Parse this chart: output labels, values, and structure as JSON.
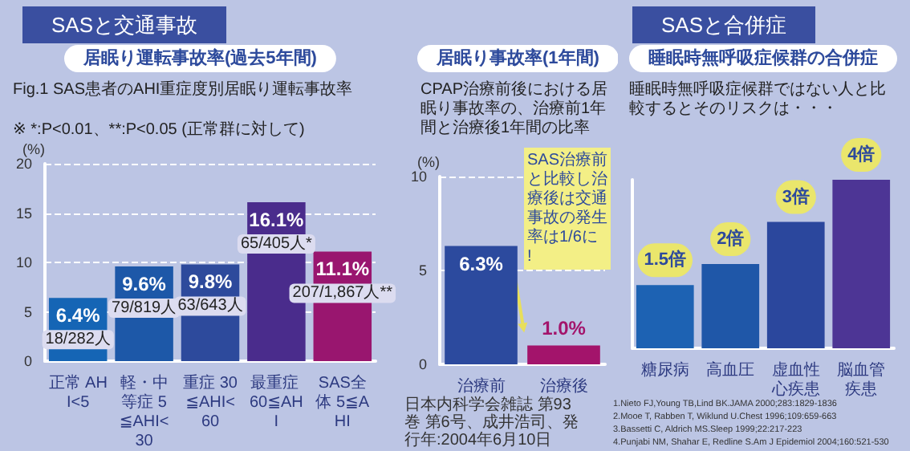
{
  "chart_data": [
    {
      "type": "bar",
      "subtitle": "SASと交通事故",
      "title": "居眠り運転事故率(過去5年間)",
      "ylabel": "(%)",
      "categories": [
        "正常 AHI<5",
        "軽・中等症 5≦AHI<30",
        "重症 30≦AHI<60",
        "最重症 60≦AHI",
        "SAS全体 5≦AHI"
      ],
      "values": [
        6.4,
        9.6,
        9.8,
        16.1,
        11.1
      ],
      "colors": [
        "#1565b5",
        "#1d58a8",
        "#2d4a9c",
        "#4a2c8c",
        "#99166f"
      ],
      "value_labels": [
        "6.4%",
        "9.6%",
        "9.8%",
        "16.1%",
        "11.1%"
      ],
      "ylim": [
        0,
        20
      ],
      "yticks": [
        0,
        5,
        10,
        15,
        20
      ],
      "grid": "y",
      "annotations": [
        "Fig.1 SAS患者のAHI重症度別居眠り運転事故率",
        "※ *:P<0.01、**:P<0.05 (正常群に対して)",
        "日本内科学会雑誌 第93巻 第6号、成井浩司、発行年:2004年6月10日",
        {
          "text": "18/282人",
          "x": "正常 AHI<5",
          "y": 6.4
        },
        {
          "text": "79/819人",
          "x": "軽・中等症 5≦AHI<30",
          "y": 9.6
        },
        {
          "text": "63/643人",
          "x": "重症 30≦AHI<60",
          "y": 9.8
        },
        {
          "text": "65/405人*",
          "x": "最重症 60≦AHI",
          "y": 16.1
        },
        {
          "text": "207/1,867人**",
          "x": "SAS全体 5≦AHI",
          "y": 11.1
        }
      ]
    },
    {
      "type": "bar",
      "title": "居眠り事故率(1年間)",
      "ylabel": "(%)",
      "categories": [
        "治療前",
        "治療後"
      ],
      "values": [
        6.3,
        1.0
      ],
      "colors": [
        "#2c4a9e",
        "#a3146b"
      ],
      "value_labels": [
        "6.3%",
        "1.0%"
      ],
      "ylim": [
        0,
        10
      ],
      "yticks": [
        0,
        5,
        10
      ],
      "grid": "y",
      "annotations": [
        "CPAP治療前後における居眠り事故率の、治療前1年間と治療後1年間の比率",
        "SAS治療前と比較し治療後は交通事故の発生率は1/6に!"
      ]
    },
    {
      "type": "bar",
      "subtitle": "SASと合併症",
      "title": "睡眠時無呼吸症候群の合併症",
      "categories": [
        "糖尿病",
        "高血圧",
        "虚血性心疾患",
        "脳血管疾患"
      ],
      "values": [
        1.5,
        2,
        3,
        4
      ],
      "colors": [
        "#1d62b3",
        "#1f57a8",
        "#2b479d",
        "#4d3595"
      ],
      "value_labels": [
        "1.5倍",
        "2倍",
        "3倍",
        "4倍"
      ],
      "tick_labels": "x",
      "annotations": [
        "睡眠時無呼吸症候群ではない人と比較するとそのリスクは・・・",
        "1.Nieto FJ,Young TB,Lind BK.JAMA 2000;283:1829-1836",
        "2.Mooe T, Rabben T, Wiklund U.Chest 1996;109:659-663",
        "3.Bassetti C, Aldrich MS.Sleep 1999;22:217-223",
        "4.Punjabi NM, Shahar E, Redline S.Am J Epidemiol 2004;160:521-530"
      ]
    }
  ]
}
